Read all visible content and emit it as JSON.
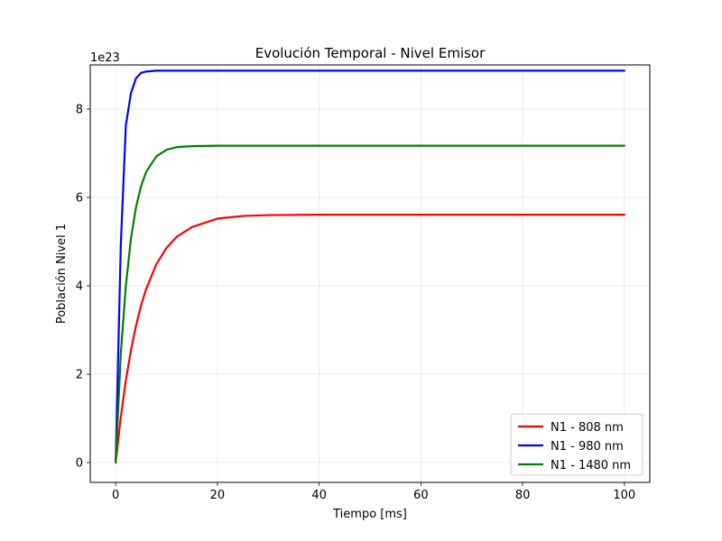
{
  "chart_data": {
    "type": "line",
    "title": "Evolución Temporal - Nivel Emisor",
    "xlabel": "Tiempo [ms]",
    "ylabel": "Población Nivel 1",
    "y_scale_label": "1e23",
    "xlim": [
      -5,
      105
    ],
    "ylim": [
      -0.45,
      9.0
    ],
    "xticks": [
      0,
      20,
      40,
      60,
      80,
      100
    ],
    "xtick_labels": [
      "0",
      "20",
      "40",
      "60",
      "80",
      "100"
    ],
    "yticks": [
      0,
      2,
      4,
      6,
      8
    ],
    "ytick_labels": [
      "0",
      "2",
      "4",
      "6",
      "8"
    ],
    "grid": true,
    "legend_position": "lower-right",
    "x": [
      0,
      1,
      2,
      3,
      4,
      5,
      6,
      8,
      10,
      12,
      15,
      20,
      25,
      30,
      40,
      50,
      60,
      70,
      80,
      90,
      100
    ],
    "series": [
      {
        "name": "N1 - 808 nm",
        "color": "#ff0000",
        "values": [
          0,
          1.02,
          1.86,
          2.54,
          3.1,
          3.56,
          3.93,
          4.49,
          4.86,
          5.11,
          5.33,
          5.52,
          5.58,
          5.6,
          5.61,
          5.61,
          5.61,
          5.61,
          5.61,
          5.61,
          5.61
        ]
      },
      {
        "name": "N1 - 980 nm",
        "color": "#0000ff",
        "values": [
          0,
          4.91,
          7.63,
          8.36,
          8.7,
          8.82,
          8.85,
          8.87,
          8.87,
          8.87,
          8.87,
          8.87,
          8.87,
          8.87,
          8.87,
          8.87,
          8.87,
          8.87,
          8.87,
          8.87,
          8.87
        ]
      },
      {
        "name": "N1 - 1480 nm",
        "color": "#008000",
        "values": [
          0,
          2.45,
          4.0,
          5.07,
          5.78,
          6.26,
          6.58,
          6.93,
          7.08,
          7.14,
          7.16,
          7.17,
          7.17,
          7.17,
          7.17,
          7.17,
          7.17,
          7.17,
          7.17,
          7.17,
          7.17
        ]
      }
    ]
  }
}
